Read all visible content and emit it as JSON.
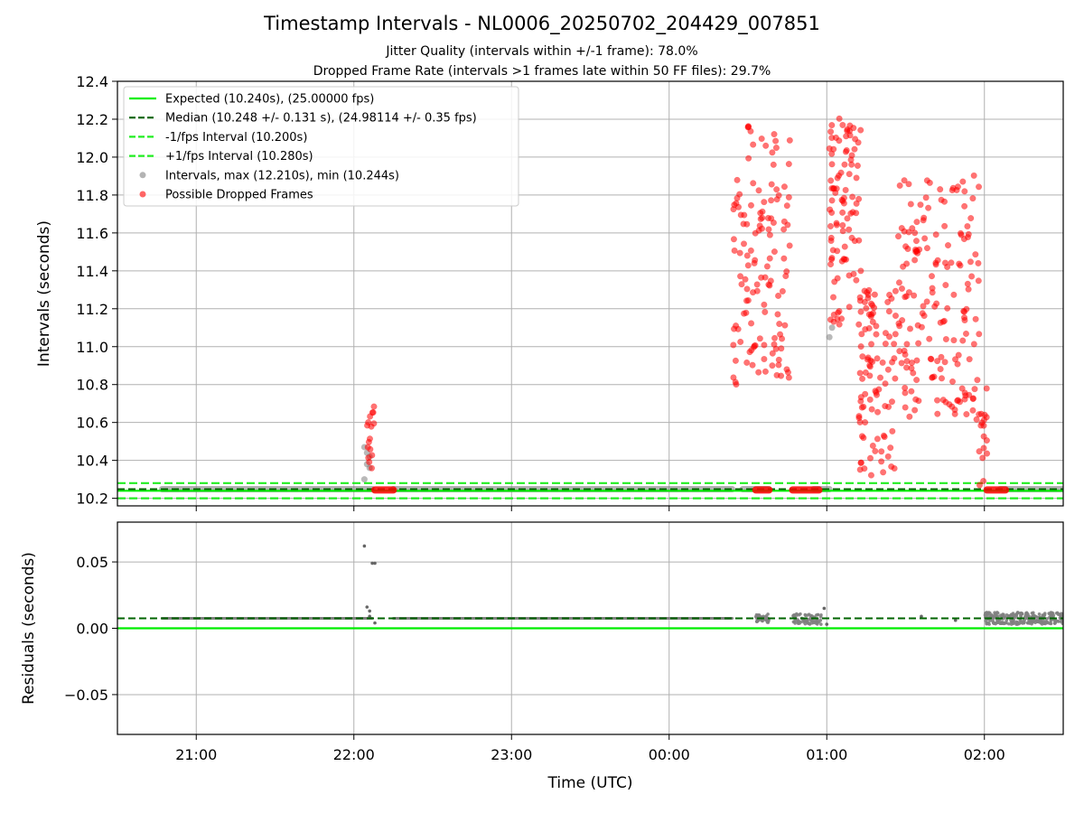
{
  "title": "Timestamp Intervals - NL0006_20250702_204429_007851",
  "subtitle_1": "Jitter Quality (intervals within +/-1 frame): 78.0%",
  "subtitle_2": "Dropped Frame Rate (intervals >1 frames late within 50 FF files): 29.7%",
  "colors": {
    "expected": "#00ee00",
    "median": "#006400",
    "bounds": "#22ee22",
    "intervals": "#808080",
    "dropped": "#ff0000",
    "grid": "#b0b0b0"
  },
  "chart_data": [
    {
      "type": "scatter",
      "panel": "top",
      "ylabel": "Intervals (seconds)",
      "xlabel": "",
      "ylim": [
        10.16,
        12.4
      ],
      "xlim": [
        "20:30",
        "02:30"
      ],
      "x_ticks": [
        "21:00",
        "22:00",
        "23:00",
        "00:00",
        "01:00",
        "02:00"
      ],
      "y_ticks": [
        "10.2",
        "10.4",
        "10.6",
        "10.8",
        "11.0",
        "11.2",
        "11.4",
        "11.6",
        "11.8",
        "12.0",
        "12.2",
        "12.4"
      ],
      "grid": true,
      "legend_position": "top-left",
      "legend": [
        "Expected (10.240s), (25.00000 fps)",
        "Median (10.248 +/- 0.131 s), (24.98114 +/- 0.35 fps)",
        "-1/fps Interval (10.200s)",
        "+1/fps Interval (10.280s)",
        "Intervals, max (12.210s), min (10.244s)",
        "Possible Dropped Frames"
      ],
      "lines": {
        "expected": 10.24,
        "median": 10.248,
        "lower": 10.2,
        "upper": 10.28
      },
      "series": [
        {
          "name": "Intervals, max (12.210s), min (10.244s)",
          "segments": [
            [
              "20:47",
              "22:07"
            ],
            [
              "22:15",
              "00:24"
            ],
            [
              "00:28",
              "00:38"
            ],
            [
              "00:55",
              "01:01"
            ],
            [
              "02:06",
              "02:30"
            ]
          ],
          "segment_value": 10.248,
          "extra_points": [
            [
              "22:04",
              10.47
            ],
            [
              "22:05",
              10.44
            ],
            [
              "22:05",
              10.38
            ],
            [
              "22:06",
              10.42
            ],
            [
              "22:04",
              10.3
            ],
            [
              "22:06",
              10.36
            ],
            [
              "01:01",
              11.05
            ],
            [
              "01:02",
              11.1
            ]
          ]
        },
        {
          "name": "Possible Dropped Frames",
          "baseline_runs": [
            [
              "22:08",
              "22:15"
            ],
            [
              "00:33",
              "00:38"
            ],
            [
              "00:47",
              "00:57"
            ],
            [
              "02:01",
              "02:08"
            ]
          ],
          "baseline_value": 10.244,
          "clusters": [
            {
              "x_range": [
                "22:05",
                "22:08"
              ],
              "count": 16,
              "y_range": [
                10.26,
                10.69
              ],
              "seed": 3
            },
            {
              "x_range": [
                "00:24",
                "00:46"
              ],
              "count": 130,
              "y_range": [
                10.8,
                12.17
              ],
              "seed": 11
            },
            {
              "x_range": [
                "01:01",
                "01:13"
              ],
              "count": 95,
              "y_range": [
                11.1,
                12.21
              ],
              "seed": 23
            },
            {
              "x_range": [
                "01:12",
                "01:27"
              ],
              "count": 95,
              "y_range": [
                10.32,
                11.3
              ],
              "seed": 37
            },
            {
              "x_range": [
                "01:27",
                "01:58"
              ],
              "count": 170,
              "y_range": [
                10.6,
                11.93
              ],
              "seed": 53
            },
            {
              "x_range": [
                "01:58",
                "02:01"
              ],
              "count": 16,
              "y_range": [
                10.25,
                10.8
              ],
              "seed": 71
            }
          ]
        }
      ]
    },
    {
      "type": "scatter",
      "panel": "bottom",
      "ylabel": "Residuals (seconds)",
      "xlabel": "Time (UTC)",
      "ylim": [
        -0.08,
        0.08
      ],
      "xlim": [
        "20:30",
        "02:30"
      ],
      "x_ticks": [
        "21:00",
        "22:00",
        "23:00",
        "00:00",
        "01:00",
        "02:00"
      ],
      "y_ticks": [
        "−0.05",
        "0.00",
        "0.05"
      ],
      "y_tick_values": [
        -0.05,
        0.0,
        0.05
      ],
      "grid": true,
      "lines": {
        "expected": 0.0,
        "median": 0.0075
      },
      "series": [
        {
          "name": "Residuals",
          "segments": [
            [
              "20:47",
              "22:07"
            ],
            [
              "22:15",
              "00:24"
            ]
          ],
          "segment_value": 0.0075,
          "extra_points": [
            [
              "22:04",
              0.062
            ],
            [
              "22:05",
              0.016
            ],
            [
              "22:06",
              0.013
            ],
            [
              "22:07",
              0.049
            ],
            [
              "22:08",
              0.049
            ],
            [
              "22:08",
              0.004
            ],
            [
              "22:06",
              0.009
            ],
            [
              "00:59",
              0.015
            ],
            [
              "01:00",
              0.003
            ],
            [
              "01:36",
              0.009
            ],
            [
              "01:49",
              0.006
            ]
          ],
          "clusters": [
            {
              "x_range": [
                "00:33",
                "00:38"
              ],
              "count": 40,
              "y_range": [
                0.004,
                0.011
              ],
              "seed": 5
            },
            {
              "x_range": [
                "00:47",
                "00:58"
              ],
              "count": 70,
              "y_range": [
                0.003,
                0.011
              ],
              "seed": 9
            },
            {
              "x_range": [
                "02:00",
                "02:30"
              ],
              "count": 260,
              "y_range": [
                0.003,
                0.012
              ],
              "seed": 17
            }
          ]
        }
      ]
    }
  ]
}
